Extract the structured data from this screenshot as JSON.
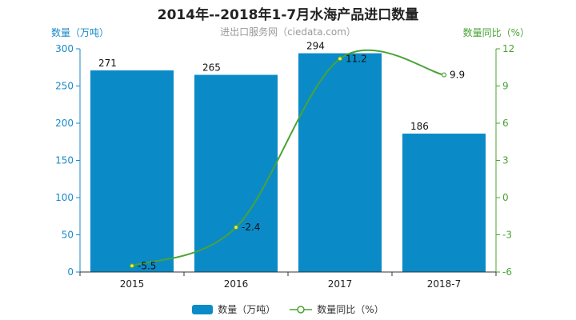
{
  "chart_data": {
    "type": "bar+line",
    "title": "2014年--2018年1-7月水海产品进口数量",
    "subtitle": "进出口服务网（ciedata.com）",
    "categories": [
      "2015",
      "2016",
      "2017",
      "2018-7"
    ],
    "series": [
      {
        "name": "数量（万吨）",
        "type": "bar",
        "axis": "left",
        "values": [
          271,
          265,
          294,
          186
        ],
        "color": "#0a8bc8"
      },
      {
        "name": "数量同比（%）",
        "type": "line",
        "axis": "right",
        "values": [
          -5.5,
          -2.4,
          11.2,
          9.9
        ],
        "color": "#4aa335"
      }
    ],
    "ylabel_left": "数量（万吨）",
    "ylabel_right": "数量同比（%）",
    "ylim_left": [
      0,
      300
    ],
    "yticks_left": [
      0,
      50,
      100,
      150,
      200,
      250,
      300
    ],
    "ylim_right": [
      -6,
      12
    ],
    "yticks_right": [
      -6,
      -3,
      0,
      3,
      6,
      9,
      12
    ],
    "grid": false,
    "legend": "bottom-center",
    "colors": {
      "left_axis": "#1b8ac7",
      "right_axis": "#4aa335"
    }
  }
}
